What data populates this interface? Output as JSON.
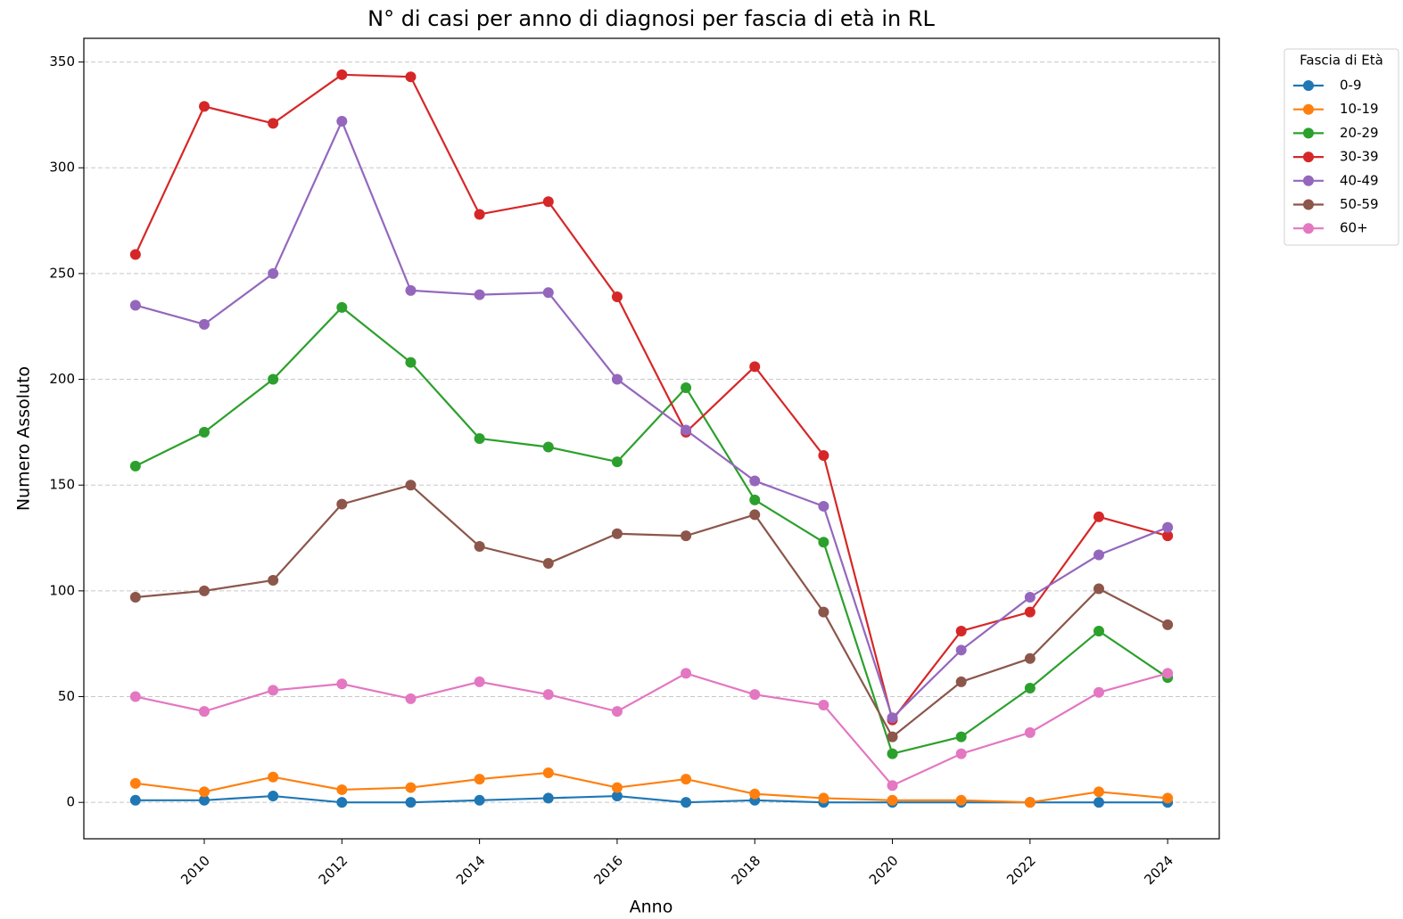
{
  "chart_data": {
    "type": "line",
    "title": "N° di casi per anno di diagnosi per fascia di età in RL",
    "x_label": "Anno",
    "y_label": "Numero Assoluto",
    "legend_title": "Fascia di Età",
    "legend_position": "outside-right",
    "x": [
      2009,
      2010,
      2011,
      2012,
      2013,
      2014,
      2015,
      2016,
      2017,
      2018,
      2019,
      2020,
      2021,
      2022,
      2023,
      2024
    ],
    "series": [
      {
        "name": "0-9",
        "color": "#1f77b4",
        "values": [
          1,
          1,
          3,
          0,
          0,
          1,
          2,
          3,
          0,
          1,
          0,
          0,
          0,
          0,
          0,
          0
        ]
      },
      {
        "name": "10-19",
        "color": "#ff7f0e",
        "values": [
          9,
          5,
          12,
          6,
          7,
          11,
          14,
          7,
          11,
          4,
          2,
          1,
          1,
          0,
          5,
          2
        ]
      },
      {
        "name": "20-29",
        "color": "#2ca02c",
        "values": [
          159,
          175,
          200,
          234,
          208,
          172,
          168,
          161,
          196,
          143,
          123,
          23,
          31,
          54,
          81,
          59
        ]
      },
      {
        "name": "30-39",
        "color": "#d62728",
        "values": [
          259,
          329,
          321,
          344,
          343,
          278,
          284,
          239,
          175,
          206,
          164,
          39,
          81,
          90,
          135,
          126
        ]
      },
      {
        "name": "40-49",
        "color": "#9467bd",
        "values": [
          235,
          226,
          250,
          322,
          242,
          240,
          241,
          200,
          176,
          152,
          140,
          40,
          72,
          97,
          117,
          130
        ]
      },
      {
        "name": "50-59",
        "color": "#8c564b",
        "values": [
          97,
          100,
          105,
          141,
          150,
          121,
          113,
          127,
          126,
          136,
          90,
          31,
          57,
          68,
          101,
          84
        ]
      },
      {
        "name": "60+",
        "color": "#e377c2",
        "values": [
          50,
          43,
          53,
          56,
          49,
          57,
          51,
          43,
          61,
          51,
          46,
          8,
          23,
          33,
          52,
          61
        ]
      }
    ],
    "xlim": [
      2008.25,
      2024.75
    ],
    "xticks": [
      2010,
      2012,
      2014,
      2016,
      2018,
      2020,
      2022,
      2024
    ],
    "ylim": [
      -17.2,
      361.2
    ],
    "yticks": [
      0,
      50,
      100,
      150,
      200,
      250,
      300,
      350
    ],
    "grid": true
  }
}
